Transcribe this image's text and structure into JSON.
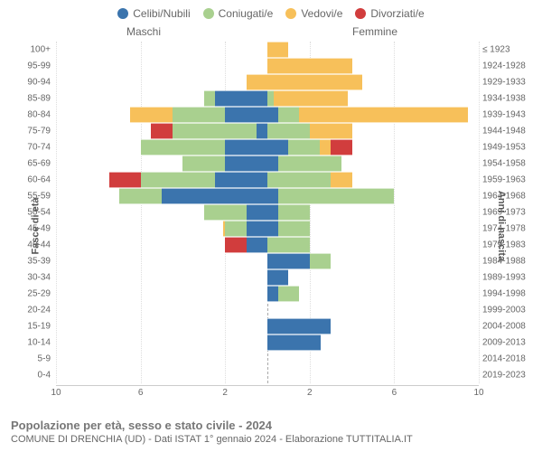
{
  "legend": [
    {
      "label": "Celibi/Nubili",
      "color": "#3b74ad"
    },
    {
      "label": "Coniugati/e",
      "color": "#a9d08f"
    },
    {
      "label": "Vedovi/e",
      "color": "#f7c05a"
    },
    {
      "label": "Divorziati/e",
      "color": "#d13d3d"
    }
  ],
  "headers": {
    "male": "Maschi",
    "female": "Femmine",
    "yearsCol": "≤ 1923"
  },
  "axis": {
    "leftTitle": "Fasce di età",
    "rightTitle": "Anni di nascita",
    "xmax": 10,
    "xticks": [
      10,
      6,
      2,
      2,
      6,
      10
    ]
  },
  "footer": {
    "title": "Popolazione per età, sesso e stato civile - 2024",
    "sub": "COMUNE DI DRENCHIA (UD) - Dati ISTAT 1° gennaio 2024 - Elaborazione TUTTITALIA.IT"
  },
  "colors": {
    "celibi": "#3b74ad",
    "coniugati": "#a9d08f",
    "vedovi": "#f7c05a",
    "divorziati": "#d13d3d"
  },
  "rows": [
    {
      "age": "100+",
      "years": "≤ 1923",
      "m": {
        "cel": 0,
        "con": 0,
        "ved": 0,
        "div": 0
      },
      "f": {
        "cel": 0,
        "con": 0,
        "ved": 1,
        "div": 0
      }
    },
    {
      "age": "95-99",
      "years": "1924-1928",
      "m": {
        "cel": 0,
        "con": 0,
        "ved": 0,
        "div": 0
      },
      "f": {
        "cel": 0,
        "con": 0,
        "ved": 4,
        "div": 0
      }
    },
    {
      "age": "90-94",
      "years": "1929-1933",
      "m": {
        "cel": 0,
        "con": 0,
        "ved": 1,
        "div": 0
      },
      "f": {
        "cel": 0,
        "con": 0,
        "ved": 4.5,
        "div": 0
      }
    },
    {
      "age": "85-89",
      "years": "1934-1938",
      "m": {
        "cel": 2.5,
        "con": 0.5,
        "ved": 0,
        "div": 0
      },
      "f": {
        "cel": 0,
        "con": 0.3,
        "ved": 3.5,
        "div": 0
      }
    },
    {
      "age": "80-84",
      "years": "1939-1943",
      "m": {
        "cel": 2,
        "con": 2.5,
        "ved": 2,
        "div": 0
      },
      "f": {
        "cel": 0.5,
        "con": 1,
        "ved": 8,
        "div": 0
      }
    },
    {
      "age": "75-79",
      "years": "1944-1948",
      "m": {
        "cel": 0.5,
        "con": 4,
        "ved": 0,
        "div": 1
      },
      "f": {
        "cel": 0,
        "con": 2,
        "ved": 2,
        "div": 0
      }
    },
    {
      "age": "70-74",
      "years": "1949-1953",
      "m": {
        "cel": 2,
        "con": 4,
        "ved": 0,
        "div": 0
      },
      "f": {
        "cel": 1,
        "con": 1.5,
        "ved": 0.5,
        "div": 1
      }
    },
    {
      "age": "65-69",
      "years": "1954-1958",
      "m": {
        "cel": 2,
        "con": 2,
        "ved": 0,
        "div": 0
      },
      "f": {
        "cel": 0.5,
        "con": 3,
        "ved": 0,
        "div": 0
      }
    },
    {
      "age": "60-64",
      "years": "1959-1963",
      "m": {
        "cel": 2.5,
        "con": 3.5,
        "ved": 0,
        "div": 1.5
      },
      "f": {
        "cel": 0,
        "con": 3,
        "ved": 1,
        "div": 0
      }
    },
    {
      "age": "55-59",
      "years": "1964-1968",
      "m": {
        "cel": 5,
        "con": 2,
        "ved": 0,
        "div": 0
      },
      "f": {
        "cel": 0.5,
        "con": 5.5,
        "ved": 0,
        "div": 0
      }
    },
    {
      "age": "50-54",
      "years": "1969-1973",
      "m": {
        "cel": 1,
        "con": 2,
        "ved": 0,
        "div": 0
      },
      "f": {
        "cel": 0.5,
        "con": 1.5,
        "ved": 0,
        "div": 0
      }
    },
    {
      "age": "45-49",
      "years": "1974-1978",
      "m": {
        "cel": 1,
        "con": 1,
        "ved": 0.1,
        "div": 0
      },
      "f": {
        "cel": 0.5,
        "con": 1.5,
        "ved": 0,
        "div": 0
      }
    },
    {
      "age": "40-44",
      "years": "1979-1983",
      "m": {
        "cel": 1,
        "con": 0,
        "ved": 0,
        "div": 1
      },
      "f": {
        "cel": 0,
        "con": 2,
        "ved": 0,
        "div": 0
      }
    },
    {
      "age": "35-39",
      "years": "1984-1988",
      "m": {
        "cel": 0,
        "con": 0,
        "ved": 0,
        "div": 0
      },
      "f": {
        "cel": 2,
        "con": 1,
        "ved": 0,
        "div": 0
      }
    },
    {
      "age": "30-34",
      "years": "1989-1993",
      "m": {
        "cel": 0,
        "con": 0,
        "ved": 0,
        "div": 0
      },
      "f": {
        "cel": 1,
        "con": 0,
        "ved": 0,
        "div": 0
      }
    },
    {
      "age": "25-29",
      "years": "1994-1998",
      "m": {
        "cel": 0,
        "con": 0,
        "ved": 0,
        "div": 0
      },
      "f": {
        "cel": 0.5,
        "con": 1,
        "ved": 0,
        "div": 0
      }
    },
    {
      "age": "20-24",
      "years": "1999-2003",
      "m": {
        "cel": 0,
        "con": 0,
        "ved": 0,
        "div": 0
      },
      "f": {
        "cel": 0,
        "con": 0,
        "ved": 0,
        "div": 0
      }
    },
    {
      "age": "15-19",
      "years": "2004-2008",
      "m": {
        "cel": 0,
        "con": 0,
        "ved": 0,
        "div": 0
      },
      "f": {
        "cel": 3,
        "con": 0,
        "ved": 0,
        "div": 0
      }
    },
    {
      "age": "10-14",
      "years": "2009-2013",
      "m": {
        "cel": 0,
        "con": 0,
        "ved": 0,
        "div": 0
      },
      "f": {
        "cel": 2.5,
        "con": 0,
        "ved": 0,
        "div": 0
      }
    },
    {
      "age": "5-9",
      "years": "2014-2018",
      "m": {
        "cel": 0,
        "con": 0,
        "ved": 0,
        "div": 0
      },
      "f": {
        "cel": 0,
        "con": 0,
        "ved": 0,
        "div": 0
      }
    },
    {
      "age": "0-4",
      "years": "2019-2023",
      "m": {
        "cel": 0,
        "con": 0,
        "ved": 0,
        "div": 0
      },
      "f": {
        "cel": 0,
        "con": 0,
        "ved": 0,
        "div": 0
      }
    }
  ]
}
